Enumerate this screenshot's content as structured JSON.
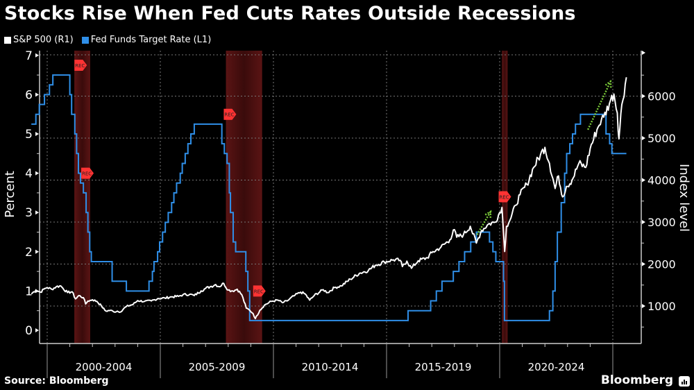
{
  "title": "Stocks Rise When Fed Cuts Rates Outside Recessions",
  "legend": [
    {
      "label": "S&P 500 (R1)",
      "color": "#ffffff"
    },
    {
      "label": "Fed Funds Target Rate (L1)",
      "color": "#2f8fe8"
    }
  ],
  "source": "Source: Bloomberg",
  "brand": "Bloomberg",
  "chart_data": {
    "type": "line",
    "title": "Stocks Rise When Fed Cuts Rates Outside Recessions",
    "xlabel": "",
    "ylabel_left": "Percent",
    "ylabel_right": "Index level",
    "x_range": [
      1999.3,
      2025.6
    ],
    "x_tick_labels": [
      "2000-2004",
      "2005-2009",
      "2010-2014",
      "2015-2019",
      "2020-2024"
    ],
    "x_major_ticks": [
      2000,
      2005,
      2010,
      2015,
      2020,
      2025
    ],
    "y_left_ticks": [
      0,
      1,
      2,
      3,
      4,
      5,
      6,
      7
    ],
    "y_left_range": [
      -0.3,
      7.1
    ],
    "y_right_ticks": [
      1000,
      2000,
      3000,
      4000,
      5000,
      6000
    ],
    "y_right_range": [
      400,
      6700
    ],
    "grid": true,
    "legend_position": "top-left",
    "recessions": [
      {
        "start": 2001.2,
        "end": 2001.9,
        "label": "REC"
      },
      {
        "start": 2007.9,
        "end": 2009.5,
        "label": "REC"
      },
      {
        "start": 2020.1,
        "end": 2020.35,
        "label": "REC"
      }
    ],
    "rec_markers": [
      {
        "x": 2001.45,
        "rate": 6.75
      },
      {
        "x": 2001.75,
        "rate": 4.0
      },
      {
        "x": 2008.05,
        "rate": 5.5
      },
      {
        "x": 2009.35,
        "rate": 1.0
      },
      {
        "x": 2020.2,
        "rate": 3.4
      }
    ],
    "annotations": [
      {
        "type": "arrow",
        "from": [
          2019.0,
          2700
        ],
        "to": [
          2019.6,
          3250
        ],
        "color": "#7ccc3a"
      },
      {
        "type": "arrow",
        "from": [
          2023.9,
          5200
        ],
        "to": [
          2024.9,
          6350
        ],
        "color": "#7ccc3a"
      }
    ],
    "series": [
      {
        "name": "Fed Funds Target Rate (L1)",
        "axis": "left",
        "color": "#2f8fe8",
        "step": true,
        "x": [
          1999.3,
          1999.5,
          1999.65,
          1999.88,
          2000.1,
          2000.25,
          2000.4,
          2001.0,
          2001.08,
          2001.22,
          2001.3,
          2001.38,
          2001.47,
          2001.6,
          2001.72,
          2001.8,
          2001.88,
          2001.95,
          2002.87,
          2003.5,
          2004.5,
          2004.65,
          2004.72,
          2004.88,
          2004.97,
          2005.1,
          2005.22,
          2005.35,
          2005.5,
          2005.6,
          2005.72,
          2005.88,
          2005.97,
          2006.1,
          2006.22,
          2006.35,
          2006.5,
          2007.72,
          2007.83,
          2007.95,
          2008.05,
          2008.1,
          2008.22,
          2008.33,
          2008.78,
          2008.87,
          2008.95,
          2015.95,
          2016.95,
          2017.2,
          2017.45,
          2017.95,
          2018.2,
          2018.45,
          2018.72,
          2018.97,
          2019.55,
          2019.7,
          2019.83,
          2020.17,
          2020.21,
          2022.2,
          2022.35,
          2022.45,
          2022.55,
          2022.72,
          2022.87,
          2022.96,
          2023.1,
          2023.22,
          2023.35,
          2023.57,
          2024.7,
          2024.86,
          2024.96,
          2025.6
        ],
        "values": [
          5.25,
          5.5,
          5.75,
          6.0,
          6.25,
          6.5,
          6.5,
          6.0,
          5.5,
          5.0,
          4.5,
          4.0,
          3.75,
          3.5,
          3.0,
          2.5,
          2.0,
          1.75,
          1.25,
          1.0,
          1.25,
          1.5,
          1.75,
          2.0,
          2.25,
          2.5,
          2.75,
          3.0,
          3.25,
          3.5,
          3.75,
          4.0,
          4.25,
          4.5,
          4.75,
          5.0,
          5.25,
          4.75,
          4.5,
          4.25,
          3.5,
          3.0,
          2.25,
          2.0,
          1.5,
          1.0,
          0.25,
          0.5,
          0.75,
          1.0,
          1.25,
          1.5,
          1.75,
          2.0,
          2.25,
          2.5,
          2.25,
          2.0,
          1.75,
          1.25,
          0.25,
          0.5,
          1.0,
          1.75,
          2.5,
          3.25,
          4.0,
          4.5,
          4.75,
          5.0,
          5.25,
          5.5,
          5.0,
          4.75,
          4.5,
          4.5
        ]
      },
      {
        "name": "S&P 500 (R1)",
        "axis": "right",
        "color": "#ffffff",
        "x": [
          1999.3,
          1999.5,
          1999.7,
          1999.9,
          2000.0,
          2000.2,
          2000.4,
          2000.6,
          2000.7,
          2000.9,
          2001.1,
          2001.25,
          2001.4,
          2001.6,
          2001.7,
          2001.8,
          2002.0,
          2002.2,
          2002.4,
          2002.55,
          2002.6,
          2002.8,
          2002.95,
          2003.1,
          2003.2,
          2003.5,
          2003.8,
          2004.0,
          2004.3,
          2004.6,
          2004.9,
          2005.2,
          2005.5,
          2005.8,
          2006.0,
          2006.3,
          2006.5,
          2006.8,
          2007.0,
          2007.2,
          2007.45,
          2007.6,
          2007.8,
          2008.0,
          2008.2,
          2008.4,
          2008.6,
          2008.8,
          2008.95,
          2009.1,
          2009.2,
          2009.4,
          2009.6,
          2009.9,
          2010.2,
          2010.4,
          2010.6,
          2010.9,
          2011.2,
          2011.4,
          2011.6,
          2011.8,
          2012.2,
          2012.4,
          2012.7,
          2013.0,
          2013.4,
          2013.8,
          2014.2,
          2014.5,
          2014.9,
          2015.3,
          2015.6,
          2015.7,
          2015.9,
          2016.1,
          2016.4,
          2016.8,
          2017.0,
          2017.4,
          2017.8,
          2018.0,
          2018.1,
          2018.4,
          2018.7,
          2018.97,
          2019.2,
          2019.5,
          2019.8,
          2020.1,
          2020.22,
          2020.3,
          2020.5,
          2020.7,
          2020.9,
          2021.2,
          2021.5,
          2021.8,
          2022.0,
          2022.2,
          2022.45,
          2022.6,
          2022.78,
          2022.95,
          2023.2,
          2023.5,
          2023.8,
          2024.0,
          2024.3,
          2024.5,
          2024.6,
          2024.9,
          2025.05,
          2025.2,
          2025.27,
          2025.4,
          2025.6
        ],
        "values": [
          1290,
          1380,
          1330,
          1420,
          1440,
          1400,
          1460,
          1480,
          1420,
          1320,
          1340,
          1170,
          1250,
          1200,
          1050,
          1120,
          1150,
          1110,
          1000,
          900,
          880,
          900,
          860,
          880,
          850,
          990,
          1040,
          1130,
          1110,
          1120,
          1180,
          1190,
          1220,
          1230,
          1270,
          1280,
          1250,
          1360,
          1420,
          1460,
          1510,
          1460,
          1540,
          1380,
          1360,
          1400,
          1270,
          950,
          900,
          820,
          700,
          900,
          1020,
          1110,
          1140,
          1080,
          1120,
          1240,
          1330,
          1290,
          1140,
          1250,
          1390,
          1320,
          1440,
          1480,
          1640,
          1780,
          1850,
          1970,
          2050,
          2100,
          2090,
          1940,
          2070,
          1900,
          2080,
          2150,
          2270,
          2400,
          2580,
          2820,
          2640,
          2700,
          2900,
          2500,
          2800,
          2950,
          3000,
          3350,
          2300,
          2900,
          3100,
          3400,
          3650,
          3900,
          4300,
          4600,
          4780,
          4400,
          3800,
          4100,
          3600,
          3850,
          4000,
          4400,
          4300,
          4750,
          5200,
          5450,
          5500,
          5900,
          6050,
          5600,
          4980,
          5800,
          6450
        ]
      }
    ]
  }
}
